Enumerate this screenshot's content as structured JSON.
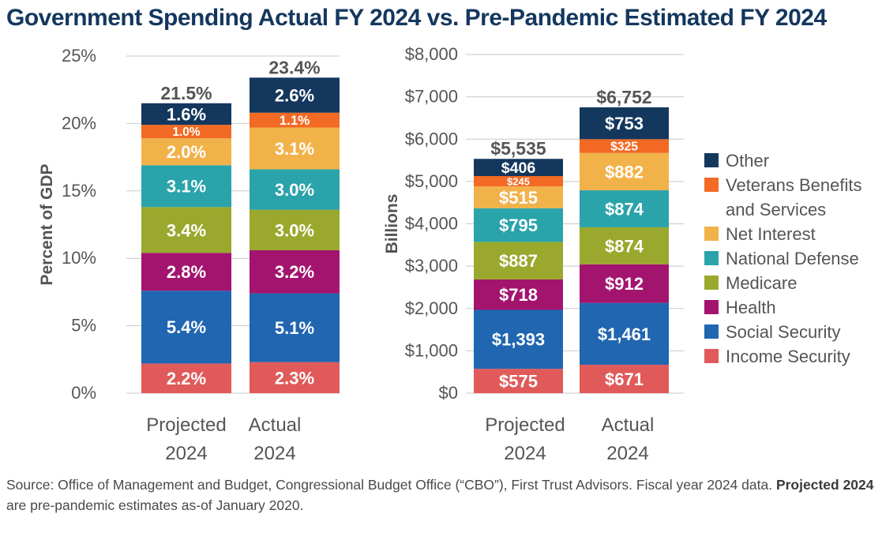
{
  "title": "Government Spending Actual FY 2024 vs. Pre-Pandemic Estimated FY 2024",
  "source": {
    "prefix": "Source: Office of Management and Budget, Congressional Budget Office (“CBO”), First Trust Advisors.  Fiscal year 2024 data. ",
    "bold": "Projected 2024",
    "suffix": " are pre-pandemic estimates as-of January 2020."
  },
  "chart_data": [
    {
      "type": "bar",
      "stacked": true,
      "ylabel": "Percent of GDP",
      "ylim": [
        0,
        25
      ],
      "yticks": [
        0,
        5,
        10,
        15,
        20,
        25
      ],
      "ytick_labels": [
        "0%",
        "5%",
        "10%",
        "15%",
        "20%",
        "25%"
      ],
      "grid": true,
      "categories": [
        [
          "Projected",
          "2024"
        ],
        [
          "Actual",
          "2024"
        ]
      ],
      "totals": [
        "21.5%",
        "23.4%"
      ],
      "series": [
        {
          "name": "Income Security",
          "color": "#e05a5a",
          "values": [
            2.2,
            2.3
          ],
          "labels": [
            "2.2%",
            "2.3%"
          ]
        },
        {
          "name": "Social Security",
          "color": "#2066b0",
          "values": [
            5.4,
            5.1
          ],
          "labels": [
            "5.4%",
            "5.1%"
          ]
        },
        {
          "name": "Health",
          "color": "#a3146e",
          "values": [
            2.8,
            3.2
          ],
          "labels": [
            "2.8%",
            "3.2%"
          ]
        },
        {
          "name": "Medicare",
          "color": "#9aa82d",
          "values": [
            3.4,
            3.0
          ],
          "labels": [
            "3.4%",
            "3.0%"
          ]
        },
        {
          "name": "National Defense",
          "color": "#2aa3aa",
          "values": [
            3.1,
            3.0
          ],
          "labels": [
            "3.1%",
            "3.0%"
          ]
        },
        {
          "name": "Net Interest",
          "color": "#f2b24a",
          "values": [
            2.0,
            3.1
          ],
          "labels": [
            "2.0%",
            "3.1%"
          ]
        },
        {
          "name": "Veterans Benefits and Services",
          "color": "#f26a24",
          "values": [
            1.0,
            1.1
          ],
          "labels": [
            "1.0%",
            "1.1%"
          ]
        },
        {
          "name": "Other",
          "color": "#14375e",
          "values": [
            1.6,
            2.6
          ],
          "labels": [
            "1.6%",
            "2.6%"
          ]
        }
      ]
    },
    {
      "type": "bar",
      "stacked": true,
      "ylabel": "Billions",
      "ylim": [
        0,
        8000
      ],
      "yticks": [
        0,
        1000,
        2000,
        3000,
        4000,
        5000,
        6000,
        7000,
        8000
      ],
      "ytick_labels": [
        "$0",
        "$1,000",
        "$2,000",
        "$3,000",
        "$4,000",
        "$5,000",
        "$6,000",
        "$7,000",
        "$8,000"
      ],
      "grid": true,
      "categories": [
        [
          "Projected",
          "2024"
        ],
        [
          "Actual",
          "2024"
        ]
      ],
      "totals": [
        "$5,535",
        "$6,752"
      ],
      "legend_position": "right",
      "series": [
        {
          "name": "Income Security",
          "color": "#e05a5a",
          "values": [
            575,
            671
          ],
          "labels": [
            "$575",
            "$671"
          ]
        },
        {
          "name": "Social Security",
          "color": "#2066b0",
          "values": [
            1393,
            1461
          ],
          "labels": [
            "$1,393",
            "$1,461"
          ]
        },
        {
          "name": "Health",
          "color": "#a3146e",
          "values": [
            718,
            912
          ],
          "labels": [
            "$718",
            "$912"
          ]
        },
        {
          "name": "Medicare",
          "color": "#9aa82d",
          "values": [
            887,
            874
          ],
          "labels": [
            "$887",
            "$874"
          ]
        },
        {
          "name": "National Defense",
          "color": "#2aa3aa",
          "values": [
            795,
            874
          ],
          "labels": [
            "$795",
            "$874"
          ]
        },
        {
          "name": "Net Interest",
          "color": "#f2b24a",
          "values": [
            515,
            882
          ],
          "labels": [
            "$515",
            "$882"
          ]
        },
        {
          "name": "Veterans Benefits and Services",
          "color": "#f26a24",
          "values": [
            245,
            325
          ],
          "labels": [
            "$245",
            "$325"
          ]
        },
        {
          "name": "Other",
          "color": "#14375e",
          "values": [
            406,
            753
          ],
          "labels": [
            "$406",
            "$753"
          ]
        }
      ]
    }
  ],
  "legend": [
    {
      "label": [
        "Other"
      ],
      "color": "#14375e"
    },
    {
      "label": [
        "Veterans Benefits",
        "and Services"
      ],
      "color": "#f26a24"
    },
    {
      "label": [
        "Net Interest"
      ],
      "color": "#f2b24a"
    },
    {
      "label": [
        "National Defense"
      ],
      "color": "#2aa3aa"
    },
    {
      "label": [
        "Medicare"
      ],
      "color": "#9aa82d"
    },
    {
      "label": [
        "Health"
      ],
      "color": "#a3146e"
    },
    {
      "label": [
        "Social Security"
      ],
      "color": "#2066b0"
    },
    {
      "label": [
        "Income Security"
      ],
      "color": "#e05a5a"
    }
  ]
}
